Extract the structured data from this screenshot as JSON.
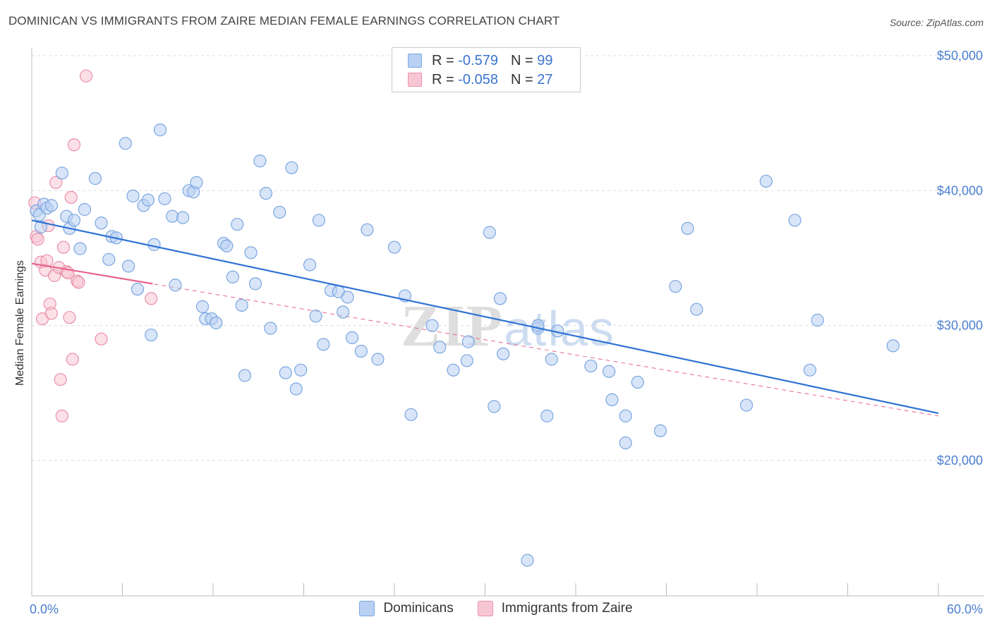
{
  "header": {
    "title": "DOMINICAN VS IMMIGRANTS FROM ZAIRE MEDIAN FEMALE EARNINGS CORRELATION CHART",
    "source": "Source: ZipAtlas.com"
  },
  "watermark": "ZIPatlas",
  "legend_top": {
    "rows": [
      {
        "r_label": "R =",
        "r_value": "-0.579",
        "n_label": "N =",
        "n_value": "99"
      },
      {
        "r_label": "R =",
        "r_value": "-0.058",
        "n_label": "N =",
        "n_value": "27"
      }
    ]
  },
  "legend_bottom": {
    "items": [
      {
        "label": "Dominicans"
      },
      {
        "label": "Immigrants from Zaire"
      }
    ]
  },
  "colors": {
    "blue_fill": "#b8d0f2",
    "blue_stroke": "#7aa6e0",
    "blue_line": "#2f72d4",
    "pink_fill": "#f7c6d4",
    "pink_stroke": "#ea8fab",
    "pink_line": "#e8648e",
    "tick_text": "#4a7fd0",
    "grid": "#dddddd"
  },
  "chart_data": {
    "type": "scatter",
    "title": "DOMINICAN VS IMMIGRANTS FROM ZAIRE MEDIAN FEMALE EARNINGS CORRELATION CHART",
    "xlabel": "",
    "ylabel": "Median Female Earnings",
    "xlim": [
      0,
      60
    ],
    "ylim": [
      10000,
      52000
    ],
    "x_tick_labels": [
      "0.0%",
      "60.0%"
    ],
    "y_ticks": [
      20000,
      30000,
      40000,
      50000
    ],
    "y_tick_labels": [
      "$20,000",
      "$30,000",
      "$40,000",
      "$50,000"
    ],
    "grid": true,
    "legend_position": "top-center",
    "series": [
      {
        "name": "Dominicans",
        "color": "#b8d0f2",
        "trend": {
          "x": [
            0,
            60
          ],
          "y": [
            37800,
            23500
          ],
          "style": "solid"
        },
        "points": [
          {
            "x": 0.3,
            "y": 38500
          },
          {
            "x": 0.5,
            "y": 38200
          },
          {
            "x": 0.8,
            "y": 39000
          },
          {
            "x": 1.0,
            "y": 38700
          },
          {
            "x": 1.3,
            "y": 38900
          },
          {
            "x": 2.0,
            "y": 41300
          },
          {
            "x": 2.3,
            "y": 38100
          },
          {
            "x": 2.5,
            "y": 37200
          },
          {
            "x": 2.8,
            "y": 37800
          },
          {
            "x": 3.2,
            "y": 35700
          },
          {
            "x": 3.5,
            "y": 38600
          },
          {
            "x": 4.2,
            "y": 40900
          },
          {
            "x": 4.6,
            "y": 37600
          },
          {
            "x": 5.1,
            "y": 34900
          },
          {
            "x": 5.3,
            "y": 36600
          },
          {
            "x": 5.6,
            "y": 36500
          },
          {
            "x": 6.2,
            "y": 43500
          },
          {
            "x": 6.4,
            "y": 34400
          },
          {
            "x": 6.7,
            "y": 39600
          },
          {
            "x": 7.0,
            "y": 32700
          },
          {
            "x": 7.4,
            "y": 38900
          },
          {
            "x": 7.7,
            "y": 39300
          },
          {
            "x": 7.9,
            "y": 29300
          },
          {
            "x": 8.1,
            "y": 36000
          },
          {
            "x": 8.5,
            "y": 44500
          },
          {
            "x": 8.8,
            "y": 39400
          },
          {
            "x": 9.3,
            "y": 38100
          },
          {
            "x": 9.5,
            "y": 33000
          },
          {
            "x": 10.0,
            "y": 38000
          },
          {
            "x": 10.4,
            "y": 40000
          },
          {
            "x": 10.7,
            "y": 39900
          },
          {
            "x": 10.9,
            "y": 40600
          },
          {
            "x": 11.3,
            "y": 31400
          },
          {
            "x": 11.5,
            "y": 30500
          },
          {
            "x": 11.9,
            "y": 30500
          },
          {
            "x": 12.2,
            "y": 30200
          },
          {
            "x": 12.7,
            "y": 36100
          },
          {
            "x": 12.9,
            "y": 35900
          },
          {
            "x": 13.3,
            "y": 33600
          },
          {
            "x": 13.6,
            "y": 37500
          },
          {
            "x": 13.9,
            "y": 31500
          },
          {
            "x": 14.1,
            "y": 26300
          },
          {
            "x": 14.5,
            "y": 35400
          },
          {
            "x": 14.8,
            "y": 33100
          },
          {
            "x": 15.1,
            "y": 42200
          },
          {
            "x": 15.5,
            "y": 39800
          },
          {
            "x": 15.8,
            "y": 29800
          },
          {
            "x": 16.4,
            "y": 38400
          },
          {
            "x": 16.8,
            "y": 26500
          },
          {
            "x": 17.2,
            "y": 41700
          },
          {
            "x": 17.5,
            "y": 25300
          },
          {
            "x": 17.8,
            "y": 26700
          },
          {
            "x": 18.4,
            "y": 34500
          },
          {
            "x": 19.0,
            "y": 37800
          },
          {
            "x": 19.3,
            "y": 28600
          },
          {
            "x": 18.8,
            "y": 30700
          },
          {
            "x": 19.8,
            "y": 32600
          },
          {
            "x": 20.3,
            "y": 32500
          },
          {
            "x": 20.6,
            "y": 31000
          },
          {
            "x": 20.9,
            "y": 32100
          },
          {
            "x": 21.2,
            "y": 29100
          },
          {
            "x": 21.8,
            "y": 28100
          },
          {
            "x": 22.2,
            "y": 37100
          },
          {
            "x": 22.9,
            "y": 27500
          },
          {
            "x": 24.0,
            "y": 35800
          },
          {
            "x": 24.7,
            "y": 32200
          },
          {
            "x": 25.1,
            "y": 23400
          },
          {
            "x": 26.5,
            "y": 30000
          },
          {
            "x": 27.0,
            "y": 28400
          },
          {
            "x": 27.9,
            "y": 26700
          },
          {
            "x": 28.8,
            "y": 27400
          },
          {
            "x": 28.9,
            "y": 28800
          },
          {
            "x": 30.3,
            "y": 36900
          },
          {
            "x": 30.6,
            "y": 24000
          },
          {
            "x": 31.0,
            "y": 32000
          },
          {
            "x": 31.2,
            "y": 27900
          },
          {
            "x": 32.8,
            "y": 12600
          },
          {
            "x": 33.5,
            "y": 29800
          },
          {
            "x": 33.5,
            "y": 30000
          },
          {
            "x": 34.1,
            "y": 23300
          },
          {
            "x": 34.4,
            "y": 27500
          },
          {
            "x": 34.8,
            "y": 29600
          },
          {
            "x": 37.0,
            "y": 27000
          },
          {
            "x": 38.2,
            "y": 26600
          },
          {
            "x": 38.4,
            "y": 24500
          },
          {
            "x": 39.3,
            "y": 23300
          },
          {
            "x": 39.3,
            "y": 21300
          },
          {
            "x": 40.1,
            "y": 25800
          },
          {
            "x": 41.6,
            "y": 22200
          },
          {
            "x": 42.6,
            "y": 32900
          },
          {
            "x": 43.4,
            "y": 37200
          },
          {
            "x": 44.0,
            "y": 31200
          },
          {
            "x": 47.3,
            "y": 24100
          },
          {
            "x": 48.6,
            "y": 40700
          },
          {
            "x": 50.5,
            "y": 37800
          },
          {
            "x": 51.5,
            "y": 26700
          },
          {
            "x": 52.0,
            "y": 30400
          },
          {
            "x": 57.0,
            "y": 28500
          },
          {
            "x": 0.6,
            "y": 37300
          }
        ]
      },
      {
        "name": "Immigrants from Zaire",
        "color": "#f7c6d4",
        "trend": {
          "x": [
            0,
            8
          ],
          "y": [
            34600,
            33100
          ],
          "style": "solid",
          "dashed_extension_to": [
            60,
            23300
          ]
        },
        "points": [
          {
            "x": 0.2,
            "y": 39100
          },
          {
            "x": 0.3,
            "y": 36600
          },
          {
            "x": 0.4,
            "y": 36400
          },
          {
            "x": 0.6,
            "y": 34700
          },
          {
            "x": 0.7,
            "y": 30500
          },
          {
            "x": 0.9,
            "y": 34100
          },
          {
            "x": 1.1,
            "y": 37400
          },
          {
            "x": 1.2,
            "y": 31600
          },
          {
            "x": 1.3,
            "y": 30900
          },
          {
            "x": 1.5,
            "y": 33700
          },
          {
            "x": 1.6,
            "y": 40600
          },
          {
            "x": 1.8,
            "y": 34300
          },
          {
            "x": 1.9,
            "y": 26000
          },
          {
            "x": 2.0,
            "y": 23300
          },
          {
            "x": 2.1,
            "y": 35800
          },
          {
            "x": 2.3,
            "y": 34000
          },
          {
            "x": 2.4,
            "y": 33900
          },
          {
            "x": 2.5,
            "y": 30600
          },
          {
            "x": 2.6,
            "y": 39500
          },
          {
            "x": 2.7,
            "y": 27500
          },
          {
            "x": 2.8,
            "y": 43400
          },
          {
            "x": 3.0,
            "y": 33300
          },
          {
            "x": 3.1,
            "y": 33200
          },
          {
            "x": 3.6,
            "y": 48500
          },
          {
            "x": 4.6,
            "y": 29000
          },
          {
            "x": 7.9,
            "y": 32000
          },
          {
            "x": 1.0,
            "y": 34800
          }
        ]
      }
    ]
  }
}
